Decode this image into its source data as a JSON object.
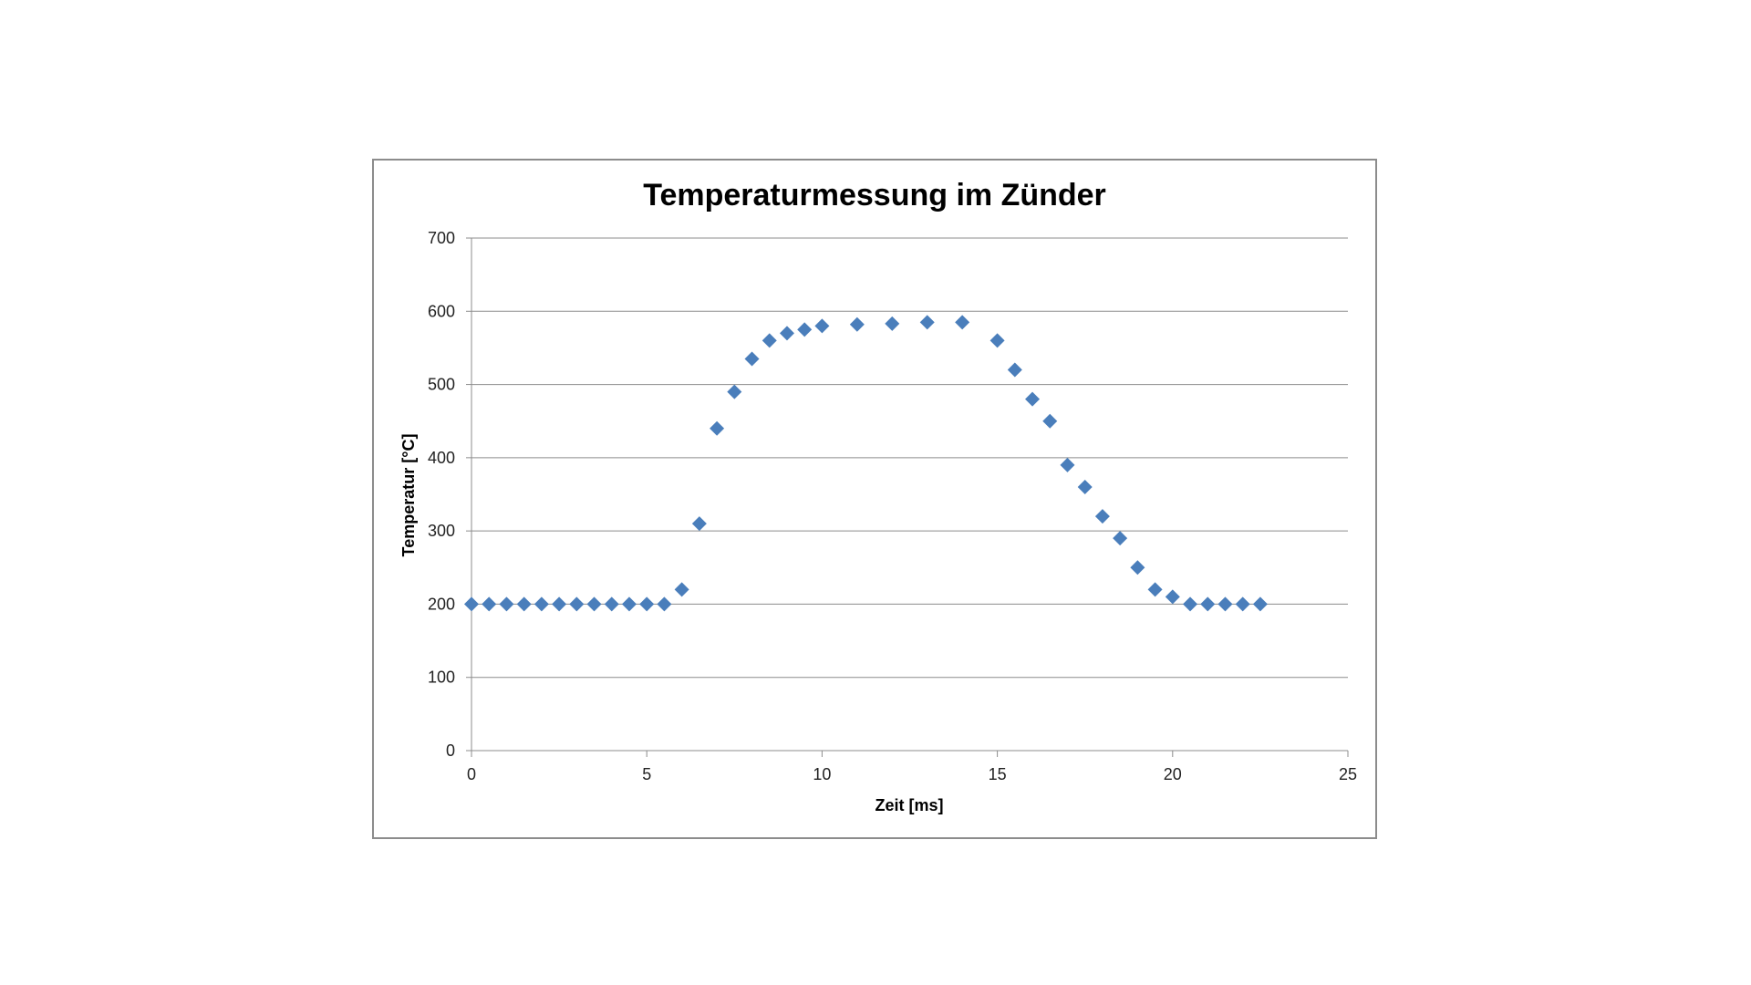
{
  "chart_data": {
    "type": "scatter",
    "title": "Temperaturmessung  im Zünder",
    "xlabel": "Zeit [ms]",
    "ylabel": "Temperatur [°C]",
    "xlim": [
      0,
      25
    ],
    "ylim": [
      0,
      700
    ],
    "xticks": [
      0,
      5,
      10,
      15,
      20,
      25
    ],
    "yticks": [
      0,
      100,
      200,
      300,
      400,
      500,
      600,
      700
    ],
    "grid": "horizontal",
    "legend": "none",
    "marker": "diamond",
    "color": "#4a7ebb",
    "series": [
      {
        "name": "Temperatur",
        "x": [
          0,
          0.5,
          1,
          1.5,
          2,
          2.5,
          3,
          3.5,
          4,
          4.5,
          5,
          5.5,
          6,
          6.5,
          7,
          7.5,
          8,
          8.5,
          9,
          9.5,
          10,
          11,
          12,
          13,
          14,
          15,
          15.5,
          16,
          16.5,
          17,
          17.5,
          18,
          18.5,
          19,
          19.5,
          20,
          20.5,
          21,
          21.5,
          22,
          22.5
        ],
        "y": [
          200,
          200,
          200,
          200,
          200,
          200,
          200,
          200,
          200,
          200,
          200,
          200,
          220,
          310,
          440,
          490,
          535,
          560,
          570,
          575,
          580,
          582,
          583,
          585,
          585,
          560,
          520,
          480,
          450,
          390,
          360,
          320,
          290,
          250,
          220,
          210,
          200,
          200,
          200,
          200,
          200
        ]
      }
    ]
  }
}
